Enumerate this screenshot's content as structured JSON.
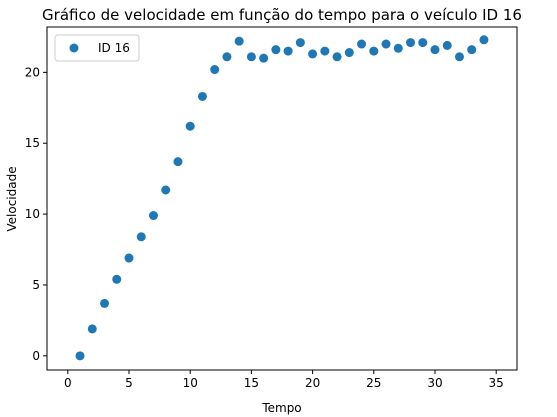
{
  "chart_data": {
    "type": "scatter",
    "title": "Gráfico de velocidade em função do tempo para o veículo ID 16",
    "xlabel": "Tempo",
    "ylabel": "Velocidade",
    "xlim": [
      -1.7,
      36.7
    ],
    "ylim": [
      -1.0,
      23.2
    ],
    "xticks": [
      0,
      5,
      10,
      15,
      20,
      25,
      30,
      35
    ],
    "yticks": [
      0,
      5,
      10,
      15,
      20
    ],
    "grid": false,
    "legend_position": "top-left",
    "series": [
      {
        "name": "ID 16",
        "color": "#1f77b4",
        "points": [
          {
            "x": 1,
            "y": 0.0
          },
          {
            "x": 2,
            "y": 1.9
          },
          {
            "x": 3,
            "y": 3.7
          },
          {
            "x": 4,
            "y": 5.4
          },
          {
            "x": 5,
            "y": 6.9
          },
          {
            "x": 6,
            "y": 8.4
          },
          {
            "x": 7,
            "y": 9.9
          },
          {
            "x": 8,
            "y": 11.7
          },
          {
            "x": 9,
            "y": 13.7
          },
          {
            "x": 10,
            "y": 16.2
          },
          {
            "x": 11,
            "y": 18.3
          },
          {
            "x": 12,
            "y": 20.2
          },
          {
            "x": 13,
            "y": 21.1
          },
          {
            "x": 14,
            "y": 22.2
          },
          {
            "x": 15,
            "y": 21.1
          },
          {
            "x": 16,
            "y": 21.0
          },
          {
            "x": 17,
            "y": 21.6
          },
          {
            "x": 18,
            "y": 21.5
          },
          {
            "x": 19,
            "y": 22.1
          },
          {
            "x": 20,
            "y": 21.3
          },
          {
            "x": 21,
            "y": 21.5
          },
          {
            "x": 22,
            "y": 21.1
          },
          {
            "x": 23,
            "y": 21.4
          },
          {
            "x": 24,
            "y": 22.0
          },
          {
            "x": 25,
            "y": 21.5
          },
          {
            "x": 26,
            "y": 22.0
          },
          {
            "x": 27,
            "y": 21.7
          },
          {
            "x": 28,
            "y": 22.1
          },
          {
            "x": 29,
            "y": 22.1
          },
          {
            "x": 30,
            "y": 21.6
          },
          {
            "x": 31,
            "y": 21.9
          },
          {
            "x": 32,
            "y": 21.1
          },
          {
            "x": 33,
            "y": 21.6
          },
          {
            "x": 34,
            "y": 22.3
          }
        ]
      }
    ]
  }
}
